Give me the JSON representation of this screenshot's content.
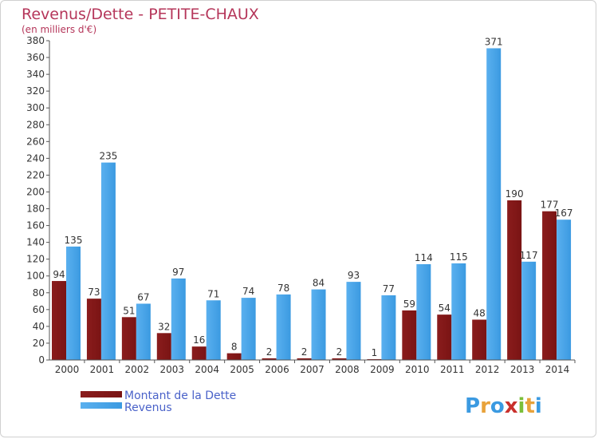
{
  "chart_data": {
    "type": "bar",
    "title": "Revenus/Dette - PETITE-CHAUX",
    "subtitle": "(en milliers d'€)",
    "categories": [
      "2000",
      "2001",
      "2002",
      "2003",
      "2004",
      "2005",
      "2006",
      "2007",
      "2008",
      "2009",
      "2010",
      "2011",
      "2012",
      "2013",
      "2014"
    ],
    "series": [
      {
        "name": "Montant de la Dette",
        "color": "#7a1414",
        "values": [
          94,
          73,
          51,
          32,
          16,
          8,
          2,
          2,
          2,
          1,
          59,
          54,
          48,
          190,
          177
        ]
      },
      {
        "name": "Revenus",
        "color": "#3b9ae1",
        "values": [
          135,
          235,
          67,
          97,
          71,
          74,
          78,
          84,
          93,
          77,
          114,
          115,
          371,
          117,
          167
        ]
      }
    ],
    "ylim": [
      0,
      380
    ],
    "ytick_step": 20,
    "grid": false,
    "legend": "bottom-left"
  },
  "brand": {
    "letters": [
      "P",
      "r",
      "o",
      "x",
      "i",
      "t",
      "i"
    ],
    "colors": [
      "#3b9ae1",
      "#e8a23a",
      "#3b9ae1",
      "#c9302c",
      "#7bbf3a",
      "#e8a23a",
      "#3b9ae1"
    ]
  }
}
